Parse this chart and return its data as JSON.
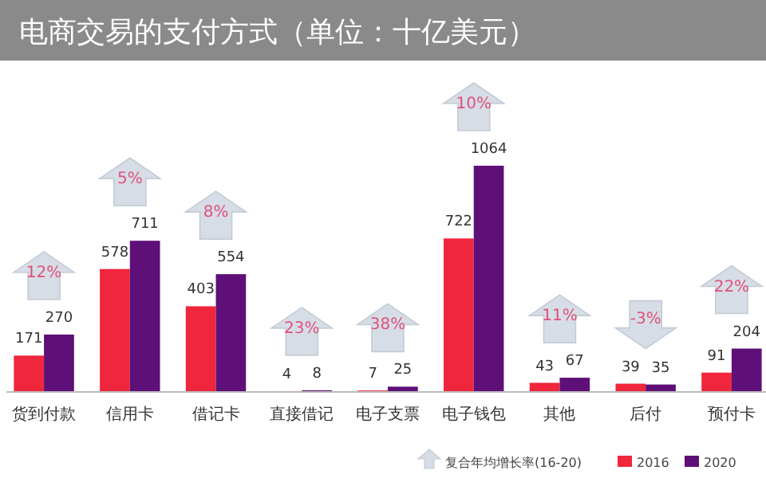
{
  "chart_data": {
    "type": "bar",
    "title": "电商交易的支付方式（单位：十亿美元）",
    "legend_title": "复合年均增长率(16-20)",
    "categories": [
      "货到付款",
      "信用卡",
      "借记卡",
      "直接借记",
      "电子支票",
      "电子钱包",
      "其他",
      "后付",
      "预付卡"
    ],
    "series": [
      {
        "name": "2016",
        "color": "#f0263c",
        "values": [
          171,
          578,
          403,
          4,
          7,
          722,
          43,
          39,
          91
        ]
      },
      {
        "name": "2020",
        "color": "#5e0f78",
        "values": [
          270,
          711,
          554,
          8,
          25,
          1064,
          67,
          35,
          204
        ]
      }
    ],
    "data_labels": true,
    "legend": "bottom right",
    "annotations": [
      "12%",
      "5%",
      "8%",
      "23%",
      "38%",
      "10%",
      "11%",
      "-3%",
      "22%"
    ]
  }
}
